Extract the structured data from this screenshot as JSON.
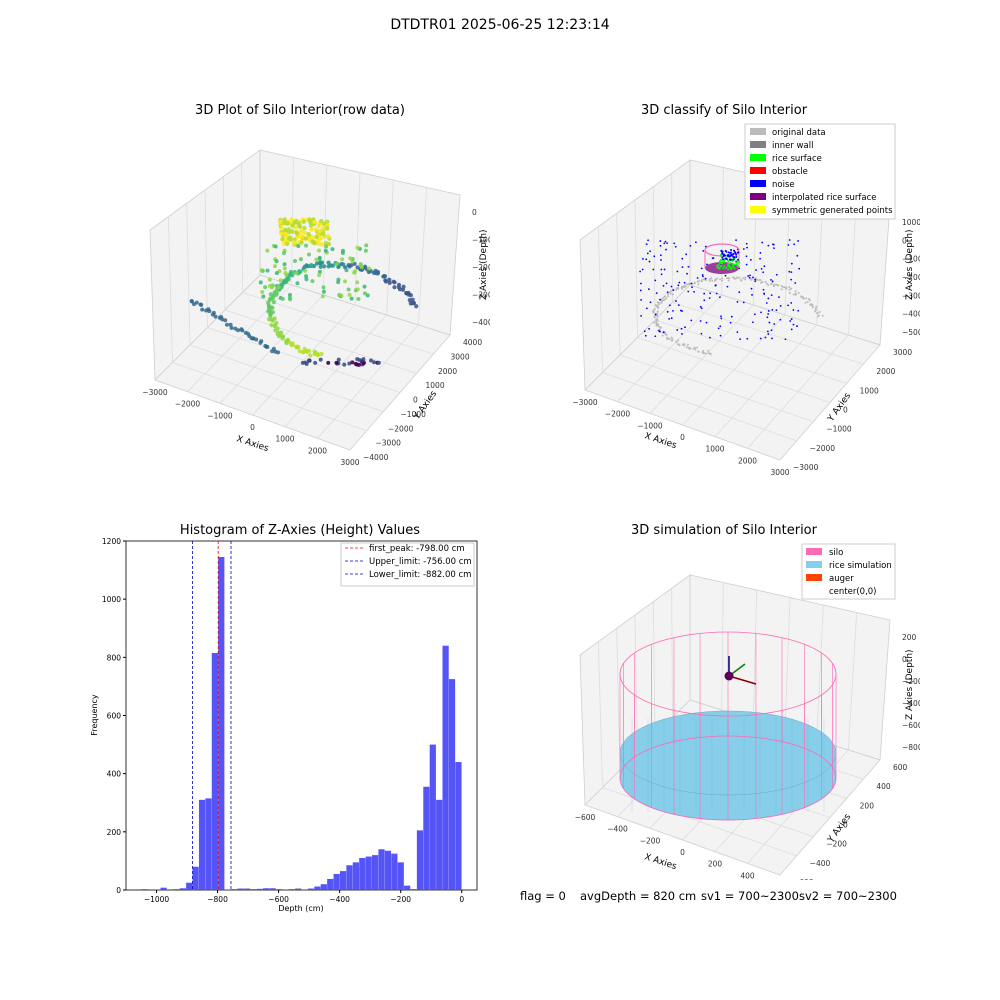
{
  "figure": {
    "suptitle": "DTDTR01 2025-06-25 12:23:14",
    "footer": {
      "flag": "flag = 0",
      "avg": "avgDepth = 820 cm",
      "sv1": "sv1 = 700~2300",
      "sv2": "sv2 = 700~2300"
    }
  },
  "colors": {
    "hist_bar": "#4b4bf7",
    "first_peak": "#ff0000",
    "limit": "#0000cc",
    "original": "#bbbbbb",
    "inner_wall": "#808080",
    "rice_surface": "#00ff00",
    "obstacle": "#ff0000",
    "noise": "#0000ff",
    "interpolated": "#800080",
    "symmetric": "#ffff00",
    "silo": "#ff69b4",
    "rice_sim": "#87ceeb",
    "auger": "#ff4500"
  },
  "panels": {
    "raw": {
      "title": "3D Plot of Silo Interior(row data)",
      "xlabel": "X Axies",
      "ylabel": "Y Axies",
      "zlabel": "Z Axies (Depth)",
      "xticks": [
        "−3000",
        "−2000",
        "−1000",
        "0",
        "1000",
        "2000",
        "3000"
      ],
      "yticks": [
        "−4000",
        "−3000",
        "−2000",
        "−1000",
        "0",
        "1000",
        "2000",
        "3000",
        "4000"
      ],
      "zticks": [
        "0",
        "−1000",
        "−2000",
        "−3000",
        "−4000"
      ],
      "icon": "viridis-point-cloud"
    },
    "classify": {
      "title": "3D classify of Silo Interior",
      "xlabel": "X Axies",
      "ylabel": "Y Axies",
      "zlabel": "Z Axies (Depth)",
      "xticks": [
        "−3000",
        "−2000",
        "−1000",
        "0",
        "1000",
        "2000",
        "3000"
      ],
      "yticks": [
        "−3000",
        "−2000",
        "−1000",
        "0",
        "1000",
        "2000",
        "3000"
      ],
      "zticks": [
        "1000",
        "0",
        "−1000",
        "−2000",
        "−3000",
        "−4000",
        "−5000"
      ],
      "legend": [
        "original data",
        "inner wall",
        "rice surface",
        "obstacle",
        "noise",
        "interpolated rice surface",
        "symmetric generated points"
      ]
    },
    "sim": {
      "title": "3D simulation of Silo Interior",
      "xlabel": "X Axies",
      "ylabel": "Y Axies",
      "zlabel": "Z Axies (Depth)",
      "xticks": [
        "−600",
        "−400",
        "−200",
        "0",
        "200",
        "400",
        "600"
      ],
      "yticks": [
        "−600",
        "−400",
        "−200",
        "0",
        "200",
        "400",
        "600"
      ],
      "zticks": [
        "200",
        "0",
        "−200",
        "−400",
        "−600",
        "−800"
      ],
      "legend": [
        "silo",
        "rice simulation",
        "auger",
        "center(0,0)"
      ]
    }
  },
  "chart_data": {
    "type": "bar",
    "title": "Histogram of Z-Axies (Height) Values",
    "xlabel": "Depth (cm)",
    "ylabel": "Frequency",
    "xlim": [
      -1100,
      50
    ],
    "ylim": [
      0,
      1200
    ],
    "xticks": [
      -1000,
      -800,
      -600,
      -400,
      -200,
      0
    ],
    "yticks": [
      0,
      200,
      400,
      600,
      800,
      1000,
      1200
    ],
    "bin_width": 21,
    "bin_start": [
      -1050,
      -1029,
      -1008,
      -987,
      -966,
      -945,
      -924,
      -903,
      -882,
      -861,
      -840,
      -819,
      -798,
      -777,
      -756,
      -735,
      -714,
      -693,
      -672,
      -651,
      -630,
      -609,
      -588,
      -567,
      -546,
      -525,
      -504,
      -483,
      -462,
      -441,
      -420,
      -399,
      -378,
      -357,
      -336,
      -315,
      -294,
      -273,
      -252,
      -231,
      -210,
      -189,
      -168,
      -147,
      -126,
      -105,
      -84,
      -63,
      -42,
      -21
    ],
    "values": [
      3,
      0,
      2,
      8,
      0,
      3,
      6,
      25,
      80,
      310,
      315,
      815,
      1145,
      2,
      3,
      5,
      5,
      3,
      4,
      6,
      6,
      3,
      2,
      3,
      5,
      2,
      5,
      12,
      20,
      38,
      55,
      65,
      85,
      95,
      110,
      115,
      120,
      140,
      135,
      125,
      95,
      15,
      3,
      205,
      355,
      500,
      310,
      840,
      725,
      440
    ],
    "lines": [
      {
        "name": "first_peak: -798.00 cm",
        "x": -798,
        "style": "red"
      },
      {
        "name": "Upper_limit: -756.00 cm",
        "x": -756,
        "style": "blue"
      },
      {
        "name": "Lower_limit: -882.00 cm",
        "x": -882,
        "style": "blue"
      }
    ],
    "legend_position": "top-right"
  }
}
